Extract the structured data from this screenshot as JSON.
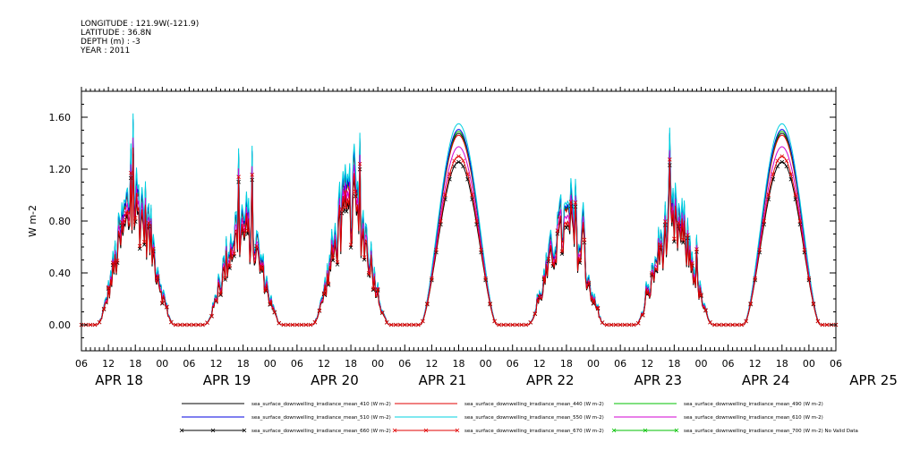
{
  "header": {
    "longitude": "LONGITUDE : 121.9W(-121.9)",
    "latitude": "LATITUDE : 36.8N",
    "depth": "DEPTH (m) : -3",
    "year": "YEAR : 2011"
  },
  "chart_data": {
    "type": "line",
    "ylabel": "W m-2",
    "ylim": [
      -0.2,
      1.8
    ],
    "yticks": [
      0.0,
      0.4,
      0.8,
      1.2,
      1.6
    ],
    "ytick_labels": [
      "0.00",
      "0.40",
      "0.80",
      "1.20",
      "1.60"
    ],
    "x_start_hour": 0,
    "x_end_hour": 168,
    "hour_tick_labels": [
      "06",
      "12",
      "18",
      "00",
      "06",
      "12",
      "18",
      "00",
      "06",
      "12",
      "18",
      "00",
      "06",
      "12",
      "18",
      "00",
      "06",
      "12",
      "18",
      "00",
      "06",
      "12",
      "18",
      "00",
      "06",
      "12",
      "18",
      "00",
      "06"
    ],
    "day_labels": [
      "APR 18",
      "APR 19",
      "APR 20",
      "APR 21",
      "APR 22",
      "APR 23",
      "APR 24",
      "APR 25"
    ],
    "day_peaks": [
      1.63,
      1.38,
      1.48,
      1.55,
      1.13,
      1.52,
      1.55
    ],
    "day_cloudy": [
      true,
      true,
      true,
      false,
      true,
      true,
      false
    ],
    "grid": false,
    "legend_position": "bottom",
    "series": [
      {
        "name": "sea_surface_downwelling_irradiance_mean_410 (W m-2)",
        "color": "#000000",
        "scale": 1.0,
        "marker": "none"
      },
      {
        "name": "sea_surface_downwelling_irradiance_mean_440 (W m-2)",
        "color": "#e00000",
        "scale": 0.99,
        "marker": "none"
      },
      {
        "name": "sea_surface_downwelling_irradiance_mean_490 (W m-2)",
        "color": "#00c000",
        "scale": 1.01,
        "marker": "none"
      },
      {
        "name": "sea_surface_downwelling_irradiance_mean_510 (W m-2)",
        "color": "#0000e0",
        "scale": 1.02,
        "marker": "none"
      },
      {
        "name": "sea_surface_downwelling_irradiance_mean_550 (W m-2)",
        "color": "#00d0e0",
        "scale": 1.05,
        "marker": "none"
      },
      {
        "name": "sea_surface_downwelling_irradiance_mean_610 (W m-2)",
        "color": "#d000d0",
        "scale": 0.93,
        "marker": "none"
      },
      {
        "name": "sea_surface_downwelling_irradiance_mean_660 (W m-2)",
        "color": "#000000",
        "scale": 0.85,
        "marker": "x"
      },
      {
        "name": "sea_surface_downwelling_irradiance_mean_670 (W m-2)",
        "color": "#e00000",
        "scale": 0.88,
        "marker": "x"
      },
      {
        "name": "sea_surface_downwelling_irradiance_mean_700 (W m-2) No Valid Data",
        "color": "#00c000",
        "scale": 0,
        "marker": "x"
      }
    ]
  }
}
